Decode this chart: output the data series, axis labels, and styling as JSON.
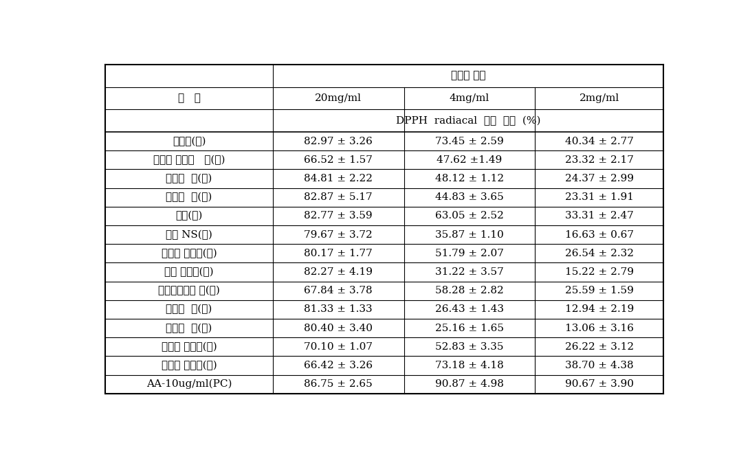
{
  "title_header": "추출물 농도",
  "sub_header_cols": [
    "20mg/ml",
    "4mg/ml",
    "2mg/ml"
  ],
  "dpph_label": "DPPH  radiacal  소거  활성  (%)",
  "col_header_left": "시   료",
  "rows": [
    [
      "공심체(강)",
      "82.97 ± 3.26",
      "73.45 ± 2.59",
      "40.34 ± 2.77"
    ],
    [
      "인디언 시금치   적(강)",
      "66.52 ± 1.57",
      "47.62 ±1.49",
      "23.32 ± 2.17"
    ],
    [
      "오크라  적(강)",
      "84.81 ± 2.22",
      "48.12 ± 1.12",
      "24.37 ± 2.99"
    ],
    [
      "오크라  청(강)",
      "82.87 ± 5.17",
      "44.83 ± 3.65",
      "23.31 ± 1.91"
    ],
    [
      "롱빈(강)",
      "82.77 ± 3.59",
      "63.05 ± 2.52",
      "33.31 ± 2.47"
    ],
    [
      "여주 NS(강)",
      "79.67 ± 3.72",
      "35.87 ± 1.10",
      "16.63 ± 0.67"
    ],
    [
      "지팡이 강낙콩(강)",
      "80.17 ± 1.77",
      "51.79 ± 2.07",
      "26.54 ± 2.32"
    ],
    [
      "여주 오돌이(강)",
      "82.27 ± 4.19",
      "31.22 ± 3.57",
      "15.22 ± 2.79"
    ],
    [
      "인디안시금치 청(강)",
      "67.84 ± 3.78",
      "58.28 ± 2.82",
      "25.59 ± 1.59"
    ],
    [
      "오크라  적(제)",
      "81.33 ± 1.33",
      "26.43 ± 1.43",
      "12.94 ± 2.19"
    ],
    [
      "오크라  녹(제)",
      "80.40 ± 3.40",
      "25.16 ± 1.65",
      "13.06 ± 3.16"
    ],
    [
      "카둔잎 개화전(제)",
      "70.10 ± 1.07",
      "52.83 ± 3.35",
      "26.22 ± 3.12"
    ],
    [
      "카둔잎 개화후(제)",
      "66.42 ± 3.26",
      "73.18 ± 4.18",
      "38.70 ± 4.38"
    ],
    [
      "AA-10ug/ml(PC)",
      "86.75 ± 2.65",
      "90.87 ± 4.98",
      "90.67 ± 3.90"
    ]
  ],
  "font_size": 11,
  "header_font_size": 11,
  "bg_color": "#ffffff",
  "text_color": "#000000",
  "line_color": "#000000"
}
